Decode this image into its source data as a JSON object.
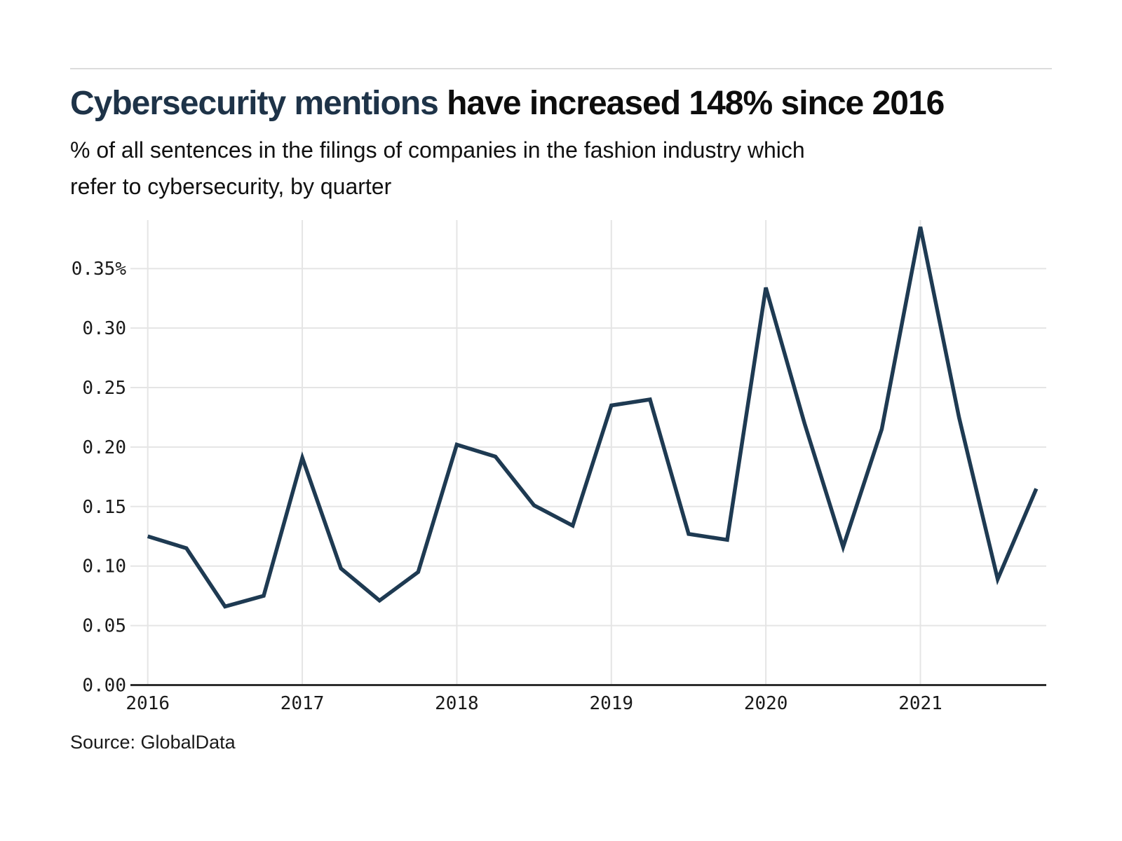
{
  "header": {
    "title_highlight": "Cybersecurity mentions",
    "title_rest": " have increased 148% since 2016",
    "highlight_color": "#1e3348",
    "subtitle_lines": [
      "% of all sentences in the filings of companies in the fashion industry which",
      "refer to cybersecurity, by quarter"
    ]
  },
  "source": {
    "label": "Source: GlobalData"
  },
  "chart_data": {
    "type": "line",
    "title": "Cybersecurity mentions have increased 148% since 2016",
    "subtitle": "% of all sentences in the filings of companies in the fashion industry which refer to cybersecurity, by quarter",
    "unit": "%",
    "categories": [
      "Q1 2016",
      "Q2 2016",
      "Q3 2016",
      "Q4 2016",
      "Q1 2017",
      "Q2 2017",
      "Q3 2017",
      "Q4 2017",
      "Q1 2018",
      "Q2 2018",
      "Q3 2018",
      "Q4 2018",
      "Q1 2019",
      "Q2 2019",
      "Q3 2019",
      "Q4 2019",
      "Q1 2020",
      "Q2 2020",
      "Q3 2020",
      "Q4 2020",
      "Q1 2021",
      "Q2 2021",
      "Q3 2021",
      "Q4 2021"
    ],
    "values": [
      0.125,
      0.115,
      0.066,
      0.075,
      0.191,
      0.098,
      0.071,
      0.095,
      0.202,
      0.192,
      0.151,
      0.134,
      0.235,
      0.24,
      0.127,
      0.122,
      0.334,
      0.22,
      0.116,
      0.215,
      0.385,
      0.225,
      0.089,
      0.165
    ],
    "x_year_ticks": [
      "2016",
      "2017",
      "2018",
      "2019",
      "2020",
      "2021"
    ],
    "y_tick_labels": [
      "0.35%",
      "0.30",
      "0.25",
      "0.20",
      "0.15",
      "0.10",
      "0.05",
      "0.00"
    ],
    "y_tick_values": [
      0.35,
      0.3,
      0.25,
      0.2,
      0.15,
      0.1,
      0.05,
      0.0
    ],
    "ylim": [
      0,
      0.39
    ],
    "grid": true,
    "legend": "none",
    "line_color": "#1e3a52",
    "grid_color": "#e5e5e5",
    "axis_color": "#2d2d2d",
    "tick_label_color": "#1a1a1a"
  }
}
